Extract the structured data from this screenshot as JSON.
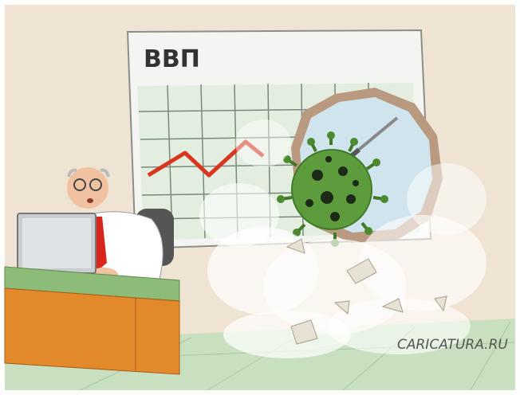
{
  "board": {
    "title": "ВВП"
  },
  "watermark": "CARICATURA.RU"
}
